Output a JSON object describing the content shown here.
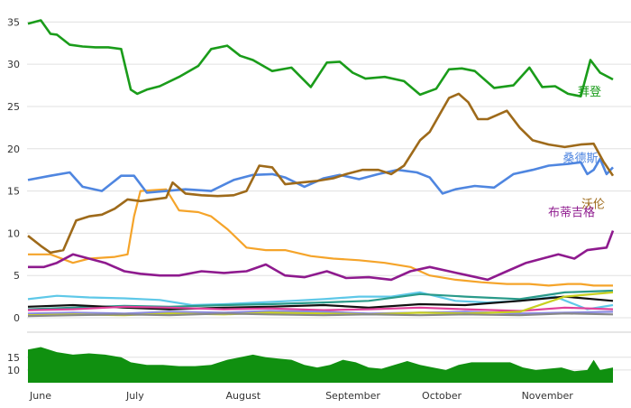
{
  "chart_data": [
    {
      "type": "line",
      "ylim": [
        0,
        36
      ],
      "y_ticks": [
        0,
        5,
        10,
        15,
        20,
        25,
        30,
        35
      ],
      "grid": "horizontal",
      "x_domain": [
        "2019-06-01",
        "2019-11-30"
      ],
      "series": [
        {
          "name": "拜登",
          "color": "#1a9c1a",
          "x": [
            "2019-06-01",
            "2019-06-05",
            "2019-06-08",
            "2019-06-10",
            "2019-06-14",
            "2019-06-18",
            "2019-06-22",
            "2019-06-26",
            "2019-06-30",
            "2019-07-03",
            "2019-07-05",
            "2019-07-08",
            "2019-07-12",
            "2019-07-18",
            "2019-07-24",
            "2019-07-28",
            "2019-08-02",
            "2019-08-06",
            "2019-08-10",
            "2019-08-16",
            "2019-08-22",
            "2019-08-28",
            "2019-09-02",
            "2019-09-06",
            "2019-09-10",
            "2019-09-14",
            "2019-09-20",
            "2019-09-26",
            "2019-10-01",
            "2019-10-06",
            "2019-10-10",
            "2019-10-14",
            "2019-10-18",
            "2019-10-24",
            "2019-10-30",
            "2019-11-04",
            "2019-11-08",
            "2019-11-12",
            "2019-11-16",
            "2019-11-20",
            "2019-11-23",
            "2019-11-26",
            "2019-11-30"
          ],
          "values": [
            34.8,
            35.2,
            33.6,
            33.5,
            32.3,
            32.1,
            32.0,
            32.0,
            31.8,
            27.0,
            26.5,
            27.0,
            27.4,
            28.5,
            29.8,
            31.8,
            32.2,
            31.0,
            30.5,
            29.2,
            29.6,
            27.3,
            30.2,
            30.3,
            29.0,
            28.3,
            28.5,
            28.0,
            26.4,
            27.1,
            29.4,
            29.5,
            29.2,
            27.2,
            27.5,
            29.6,
            27.3,
            27.4,
            26.5,
            26.2,
            30.5,
            29.0,
            28.2
          ]
        },
        {
          "name": "桑德斯",
          "color": "#4f86e0",
          "x": [
            "2019-06-01",
            "2019-06-08",
            "2019-06-14",
            "2019-06-18",
            "2019-06-24",
            "2019-06-30",
            "2019-07-04",
            "2019-07-08",
            "2019-07-14",
            "2019-07-20",
            "2019-07-28",
            "2019-08-04",
            "2019-08-10",
            "2019-08-16",
            "2019-08-20",
            "2019-08-26",
            "2019-09-01",
            "2019-09-06",
            "2019-09-12",
            "2019-09-18",
            "2019-09-24",
            "2019-09-30",
            "2019-10-04",
            "2019-10-08",
            "2019-10-12",
            "2019-10-18",
            "2019-10-24",
            "2019-10-30",
            "2019-11-05",
            "2019-11-10",
            "2019-11-16",
            "2019-11-20",
            "2019-11-22",
            "2019-11-24",
            "2019-11-26",
            "2019-11-28",
            "2019-11-30"
          ],
          "values": [
            16.3,
            16.8,
            17.2,
            15.5,
            15.0,
            16.8,
            16.8,
            14.8,
            15.0,
            15.2,
            15.0,
            16.3,
            16.9,
            17.0,
            16.6,
            15.5,
            16.5,
            16.9,
            16.4,
            17.0,
            17.5,
            17.2,
            16.6,
            14.7,
            15.2,
            15.6,
            15.4,
            17.0,
            17.5,
            18.0,
            18.2,
            18.4,
            17.0,
            17.5,
            18.8,
            17.0,
            17.8
          ]
        },
        {
          "name": "沃伦",
          "color": "#9e6a1a",
          "x": [
            "2019-06-01",
            "2019-06-05",
            "2019-06-08",
            "2019-06-12",
            "2019-06-16",
            "2019-06-20",
            "2019-06-24",
            "2019-06-28",
            "2019-07-02",
            "2019-07-06",
            "2019-07-10",
            "2019-07-14",
            "2019-07-16",
            "2019-07-20",
            "2019-07-25",
            "2019-07-30",
            "2019-08-04",
            "2019-08-08",
            "2019-08-12",
            "2019-08-16",
            "2019-08-20",
            "2019-08-25",
            "2019-08-30",
            "2019-09-04",
            "2019-09-08",
            "2019-09-13",
            "2019-09-18",
            "2019-09-22",
            "2019-09-26",
            "2019-10-01",
            "2019-10-04",
            "2019-10-07",
            "2019-10-10",
            "2019-10-13",
            "2019-10-16",
            "2019-10-19",
            "2019-10-22",
            "2019-10-28",
            "2019-11-01",
            "2019-11-05",
            "2019-11-10",
            "2019-11-15",
            "2019-11-20",
            "2019-11-24",
            "2019-11-27",
            "2019-11-30"
          ],
          "values": [
            9.7,
            8.5,
            7.7,
            8.0,
            11.5,
            12.0,
            12.2,
            12.9,
            14.0,
            13.8,
            14.0,
            14.2,
            16.0,
            14.7,
            14.5,
            14.4,
            14.5,
            15.0,
            18.0,
            17.8,
            15.8,
            16.0,
            16.2,
            16.5,
            17.0,
            17.5,
            17.5,
            17.0,
            18.0,
            21.0,
            22.0,
            24.0,
            26.0,
            26.5,
            25.5,
            23.5,
            23.5,
            24.5,
            22.5,
            21.0,
            20.5,
            20.2,
            20.5,
            20.6,
            18.5,
            16.8
          ]
        },
        {
          "name": "布蒂吉格",
          "color": "#8e1a8e",
          "x": [
            "2019-06-01",
            "2019-06-06",
            "2019-06-10",
            "2019-06-15",
            "2019-06-20",
            "2019-06-25",
            "2019-07-01",
            "2019-07-06",
            "2019-07-12",
            "2019-07-18",
            "2019-07-25",
            "2019-08-01",
            "2019-08-08",
            "2019-08-14",
            "2019-08-20",
            "2019-08-26",
            "2019-09-02",
            "2019-09-08",
            "2019-09-15",
            "2019-09-22",
            "2019-09-28",
            "2019-10-04",
            "2019-10-10",
            "2019-10-16",
            "2019-10-22",
            "2019-10-28",
            "2019-11-03",
            "2019-11-08",
            "2019-11-13",
            "2019-11-18",
            "2019-11-22",
            "2019-11-26",
            "2019-11-28",
            "2019-11-30"
          ],
          "values": [
            6.0,
            6.0,
            6.5,
            7.5,
            7.0,
            6.5,
            5.5,
            5.2,
            5.0,
            5.0,
            5.5,
            5.3,
            5.5,
            6.3,
            5.0,
            4.8,
            5.5,
            4.7,
            4.8,
            4.5,
            5.5,
            6.0,
            5.5,
            5.0,
            4.5,
            5.5,
            6.5,
            7.0,
            7.5,
            7.0,
            8.0,
            8.2,
            8.3,
            10.3
          ]
        },
        {
          "name": "",
          "color": "#f5a42a",
          "x": [
            "2019-06-01",
            "2019-06-08",
            "2019-06-15",
            "2019-06-20",
            "2019-06-28",
            "2019-07-02",
            "2019-07-04",
            "2019-07-06",
            "2019-07-14",
            "2019-07-18",
            "2019-07-24",
            "2019-07-28",
            "2019-08-02",
            "2019-08-08",
            "2019-08-14",
            "2019-08-20",
            "2019-08-28",
            "2019-09-04",
            "2019-09-12",
            "2019-09-20",
            "2019-09-28",
            "2019-10-04",
            "2019-10-12",
            "2019-10-20",
            "2019-10-28",
            "2019-11-04",
            "2019-11-10",
            "2019-11-16",
            "2019-11-20",
            "2019-11-24",
            "2019-11-30"
          ],
          "values": [
            7.5,
            7.5,
            6.5,
            7.0,
            7.2,
            7.5,
            12.0,
            15.0,
            15.2,
            12.7,
            12.5,
            12.0,
            10.5,
            8.3,
            8.0,
            8.0,
            7.3,
            7.0,
            6.8,
            6.5,
            6.0,
            5.0,
            4.5,
            4.2,
            4.0,
            4.0,
            3.8,
            4.0,
            4.0,
            3.8,
            3.8
          ]
        },
        {
          "name": "",
          "color": "#5ec8e8",
          "x": [
            "2019-06-01",
            "2019-06-10",
            "2019-06-20",
            "2019-07-01",
            "2019-07-12",
            "2019-07-22",
            "2019-08-01",
            "2019-08-12",
            "2019-08-22",
            "2019-09-01",
            "2019-09-12",
            "2019-09-22",
            "2019-10-01",
            "2019-10-12",
            "2019-10-22",
            "2019-11-01",
            "2019-11-12",
            "2019-11-22",
            "2019-11-30"
          ],
          "values": [
            2.2,
            2.6,
            2.4,
            2.3,
            2.1,
            1.5,
            1.6,
            1.8,
            2.0,
            2.2,
            2.5,
            2.5,
            3.0,
            2.0,
            1.8,
            2.0,
            2.5,
            1.0,
            1.5
          ]
        },
        {
          "name": "",
          "color": "#2a9a8a",
          "x": [
            "2019-06-01",
            "2019-06-15",
            "2019-07-01",
            "2019-07-15",
            "2019-08-01",
            "2019-08-15",
            "2019-09-01",
            "2019-09-15",
            "2019-10-01",
            "2019-10-15",
            "2019-11-01",
            "2019-11-15",
            "2019-11-30"
          ],
          "values": [
            1.0,
            1.2,
            1.4,
            1.3,
            1.5,
            1.6,
            1.8,
            2.0,
            2.8,
            2.5,
            2.2,
            3.0,
            3.2
          ]
        },
        {
          "name": "",
          "color": "#111111",
          "x": [
            "2019-06-01",
            "2019-06-15",
            "2019-07-01",
            "2019-07-15",
            "2019-08-01",
            "2019-08-15",
            "2019-09-01",
            "2019-09-15",
            "2019-10-01",
            "2019-10-15",
            "2019-11-01",
            "2019-11-15",
            "2019-11-30"
          ],
          "values": [
            1.3,
            1.5,
            1.2,
            1.0,
            1.2,
            1.3,
            1.5,
            1.2,
            1.6,
            1.5,
            2.0,
            2.5,
            2.0
          ]
        },
        {
          "name": "",
          "color": "#e0409a",
          "x": [
            "2019-06-01",
            "2019-06-15",
            "2019-07-01",
            "2019-07-15",
            "2019-08-01",
            "2019-08-15",
            "2019-09-01",
            "2019-09-15",
            "2019-10-01",
            "2019-10-15",
            "2019-11-01",
            "2019-11-15",
            "2019-11-30"
          ],
          "values": [
            0.9,
            1.0,
            1.3,
            1.2,
            1.0,
            1.1,
            0.9,
            1.0,
            1.2,
            1.0,
            0.8,
            1.2,
            1.0
          ]
        },
        {
          "name": "",
          "color": "#8a8ae0",
          "x": [
            "2019-06-01",
            "2019-06-15",
            "2019-07-01",
            "2019-07-15",
            "2019-08-01",
            "2019-08-15",
            "2019-09-01",
            "2019-09-15",
            "2019-10-01",
            "2019-10-15",
            "2019-11-01",
            "2019-11-15",
            "2019-11-30"
          ],
          "values": [
            0.5,
            0.6,
            0.5,
            0.7,
            0.6,
            0.8,
            0.7,
            0.5,
            0.6,
            0.7,
            0.5,
            0.6,
            0.7
          ]
        },
        {
          "name": "",
          "color": "#c8d020",
          "x": [
            "2019-06-01",
            "2019-06-15",
            "2019-07-01",
            "2019-07-15",
            "2019-08-01",
            "2019-08-15",
            "2019-09-01",
            "2019-09-15",
            "2019-10-01",
            "2019-10-15",
            "2019-11-01",
            "2019-11-15",
            "2019-11-30"
          ],
          "values": [
            0.3,
            0.4,
            0.3,
            0.5,
            0.4,
            0.6,
            0.5,
            0.4,
            0.6,
            0.5,
            0.7,
            2.5,
            3.0
          ]
        },
        {
          "name": "",
          "color": "#888888",
          "x": [
            "2019-06-01",
            "2019-06-15",
            "2019-07-01",
            "2019-07-15",
            "2019-08-01",
            "2019-08-15",
            "2019-09-01",
            "2019-09-15",
            "2019-10-01",
            "2019-10-15",
            "2019-11-01",
            "2019-11-15",
            "2019-11-30"
          ],
          "values": [
            0.2,
            0.3,
            0.4,
            0.3,
            0.5,
            0.4,
            0.3,
            0.4,
            0.3,
            0.4,
            0.3,
            0.5,
            0.4
          ]
        }
      ]
    },
    {
      "type": "area",
      "y_ticks": [
        10,
        15
      ],
      "ylim": [
        5,
        22
      ],
      "color": "#109010",
      "x": [
        "2019-06-01",
        "2019-06-05",
        "2019-06-10",
        "2019-06-15",
        "2019-06-20",
        "2019-06-25",
        "2019-06-30",
        "2019-07-03",
        "2019-07-08",
        "2019-07-13",
        "2019-07-18",
        "2019-07-23",
        "2019-07-28",
        "2019-08-02",
        "2019-08-06",
        "2019-08-10",
        "2019-08-14",
        "2019-08-18",
        "2019-08-22",
        "2019-08-26",
        "2019-08-30",
        "2019-09-03",
        "2019-09-07",
        "2019-09-11",
        "2019-09-15",
        "2019-09-19",
        "2019-09-23",
        "2019-09-27",
        "2019-10-01",
        "2019-10-05",
        "2019-10-09",
        "2019-10-13",
        "2019-10-17",
        "2019-10-21",
        "2019-10-25",
        "2019-10-29",
        "2019-11-02",
        "2019-11-06",
        "2019-11-10",
        "2019-11-14",
        "2019-11-18",
        "2019-11-22",
        "2019-11-24",
        "2019-11-26",
        "2019-11-28",
        "2019-11-30"
      ],
      "values": [
        18,
        19,
        17,
        16,
        16.5,
        16,
        15,
        13,
        12,
        12,
        11.5,
        11.5,
        12,
        14,
        15,
        16,
        15,
        14.5,
        14,
        12,
        11,
        12,
        14,
        13,
        11,
        10.5,
        12,
        13.5,
        12,
        11,
        10,
        12,
        13,
        13,
        13,
        13,
        11,
        10,
        10.5,
        11,
        9.5,
        10,
        14,
        10,
        10.5,
        11
      ]
    }
  ],
  "x_axis": {
    "labels": [
      "June",
      "July",
      "August",
      "September",
      "October",
      "November"
    ]
  },
  "colors": {
    "grid": "#e0e0e0",
    "axis_text": "#333333",
    "separator": "#cccccc"
  }
}
